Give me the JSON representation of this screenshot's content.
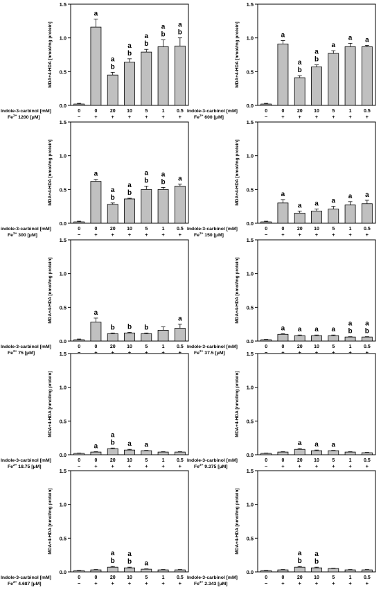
{
  "chart_data": [
    {
      "type": "bar",
      "ylabel": "MDA+4-HDA [nmol/mg protein]",
      "ylim": [
        0,
        1.5
      ],
      "yticks": [
        "0.0",
        "0.5",
        "1.0",
        "1.5"
      ],
      "row1_label": "Indole-3-carbinol [mM]",
      "row2_label": "Fe",
      "row2_sup": "2+",
      "row2_value": "1200 [μM]",
      "categories": [
        "0",
        "0",
        "20",
        "10",
        "5",
        "1",
        "0.5"
      ],
      "fe_signs": [
        "−",
        "+",
        "+",
        "+",
        "+",
        "+",
        "+"
      ],
      "values": [
        0.02,
        1.16,
        0.45,
        0.64,
        0.79,
        0.87,
        0.88
      ],
      "errors": [
        0.01,
        0.12,
        0.04,
        0.05,
        0.04,
        0.1,
        0.12
      ],
      "letters": [
        [],
        [
          "a"
        ],
        [
          "a",
          "b"
        ],
        [
          "a",
          "b"
        ],
        [
          "a",
          "b"
        ],
        [
          "a",
          "b"
        ],
        [
          "a",
          "b"
        ]
      ]
    },
    {
      "type": "bar",
      "ylabel": "MDA+4-HDA [nmol/mg protein]",
      "ylim": [
        0,
        1.5
      ],
      "yticks": [
        "0.0",
        "0.5",
        "1.0",
        "1.5"
      ],
      "row1_label": "Indole-3-carbinol [mM]",
      "row2_label": "Fe",
      "row2_sup": "2+",
      "row2_value": "600 [μM]",
      "categories": [
        "0",
        "0",
        "20",
        "10",
        "5",
        "1",
        "0.5"
      ],
      "fe_signs": [
        "−",
        "+",
        "+",
        "+",
        "+",
        "+",
        "+"
      ],
      "values": [
        0.02,
        0.91,
        0.41,
        0.57,
        0.77,
        0.87,
        0.87
      ],
      "errors": [
        0.01,
        0.05,
        0.03,
        0.03,
        0.04,
        0.05,
        0.02
      ],
      "letters": [
        [],
        [
          "a"
        ],
        [
          "a",
          "b"
        ],
        [
          "a",
          "b"
        ],
        [
          "a"
        ],
        [
          "a"
        ],
        [
          "a"
        ]
      ]
    },
    {
      "type": "bar",
      "ylabel": "MDA+4-HDA [nmol/mg protein]",
      "ylim": [
        0,
        1.5
      ],
      "yticks": [
        "0.0",
        "0.5",
        "1.0",
        "1.5"
      ],
      "row1_label": "indole-3-carbinol [mM]",
      "row2_label": "Fe",
      "row2_sup": "2+",
      "row2_value": "300 [μM]",
      "categories": [
        "0",
        "0",
        "20",
        "10",
        "5",
        "1",
        "0.5"
      ],
      "fe_signs": [
        "−",
        "+",
        "+",
        "+",
        "+",
        "+",
        "+"
      ],
      "values": [
        0.02,
        0.62,
        0.28,
        0.36,
        0.5,
        0.5,
        0.55
      ],
      "errors": [
        0.01,
        0.03,
        0.02,
        0.01,
        0.05,
        0.03,
        0.03
      ],
      "letters": [
        [],
        [
          "a"
        ],
        [
          "a",
          "b"
        ],
        [
          "a",
          "b"
        ],
        [
          "a",
          "b"
        ],
        [
          "a",
          "b"
        ],
        [
          "a"
        ]
      ]
    },
    {
      "type": "bar",
      "ylabel": "MDA+4-HDA [nmol/mg protein]",
      "ylim": [
        0,
        1.5
      ],
      "yticks": [
        "0.0",
        "0.5",
        "1.0",
        "1.5"
      ],
      "row1_label": "Indole-3-carbinol [mM]",
      "row2_label": "Fe",
      "row2_sup": "2+",
      "row2_value": "150 [μM]",
      "categories": [
        "0",
        "0",
        "20",
        "10",
        "5",
        "1",
        "0.5"
      ],
      "fe_signs": [
        "−",
        "+",
        "+",
        "+",
        "+",
        "+",
        "+"
      ],
      "values": [
        0.02,
        0.3,
        0.15,
        0.18,
        0.21,
        0.27,
        0.29
      ],
      "errors": [
        0.01,
        0.05,
        0.03,
        0.03,
        0.04,
        0.05,
        0.05
      ],
      "letters": [
        [],
        [
          "a"
        ],
        [
          "a"
        ],
        [
          "a"
        ],
        [
          "a"
        ],
        [
          "a"
        ],
        [
          "a"
        ]
      ]
    },
    {
      "type": "bar",
      "ylabel": "MDA+4-HDA [nmol/mg protein]",
      "ylim": [
        0,
        1.5
      ],
      "yticks": [
        "0.0",
        "0.5",
        "1.0",
        "1.5"
      ],
      "row1_label": "Indole-3-carbinol [mM]",
      "row2_label": "Fe",
      "row2_sup": "2+",
      "row2_value": "75 [μM]",
      "categories": [
        "0",
        "0",
        "20",
        "10",
        "5",
        "1",
        "0.5"
      ],
      "fe_signs": [
        "−",
        "+",
        "+",
        "+",
        "+",
        "+",
        "+"
      ],
      "values": [
        0.02,
        0.28,
        0.11,
        0.12,
        0.11,
        0.16,
        0.19
      ],
      "errors": [
        0.01,
        0.06,
        0.01,
        0.01,
        0.01,
        0.05,
        0.06
      ],
      "letters": [
        [],
        [
          "a"
        ],
        [
          "b"
        ],
        [
          "b"
        ],
        [
          "b"
        ],
        [],
        [
          "a"
        ]
      ]
    },
    {
      "type": "bar",
      "ylabel": "MDA+4-HDA [nmol/mg protein]",
      "ylim": [
        0,
        1.5
      ],
      "yticks": [
        "0.0",
        "0.5",
        "1.0",
        "1.5"
      ],
      "row1_label": "Indole-3-carbinol [mM]",
      "row2_label": "Fe",
      "row2_sup": "2+",
      "row2_value": "37.5 [μM]",
      "categories": [
        "0",
        "0",
        "20",
        "10",
        "5",
        "1",
        "0.5"
      ],
      "fe_signs": [
        "−",
        "+",
        "+",
        "+",
        "+",
        "+",
        "+"
      ],
      "values": [
        0.02,
        0.1,
        0.08,
        0.08,
        0.08,
        0.06,
        0.06
      ],
      "errors": [
        0.005,
        0.01,
        0.01,
        0.01,
        0.01,
        0.005,
        0.005
      ],
      "letters": [
        [],
        [
          "a"
        ],
        [
          "a"
        ],
        [
          "a"
        ],
        [
          "a"
        ],
        [
          "a",
          "b"
        ],
        [
          "a",
          "b"
        ]
      ]
    },
    {
      "type": "bar",
      "ylabel": "MDA+4-HDA [nmol/mg protein]",
      "ylim": [
        0,
        1.5
      ],
      "yticks": [
        "0.0",
        "0.5",
        "1.0",
        "1.5"
      ],
      "row1_label": "Indole-3-carbinol [mM]",
      "row2_label": "Fe",
      "row2_sup": "2+",
      "row2_value": "18.75 [μM]",
      "categories": [
        "0",
        "0",
        "20",
        "10",
        "5",
        "1",
        "0.5"
      ],
      "fe_signs": [
        "−",
        "+",
        "+",
        "+",
        "+",
        "+",
        "+"
      ],
      "values": [
        0.02,
        0.04,
        0.09,
        0.07,
        0.06,
        0.04,
        0.04
      ],
      "errors": [
        0.005,
        0.005,
        0.01,
        0.01,
        0.005,
        0.005,
        0.005
      ],
      "letters": [
        [],
        [
          "a"
        ],
        [
          "a",
          "b"
        ],
        [
          "a"
        ],
        [
          "a"
        ],
        [],
        []
      ]
    },
    {
      "type": "bar",
      "ylabel": "MDA+4-HDA [nmol/mg protein]",
      "ylim": [
        0,
        1.5
      ],
      "yticks": [
        "0.0",
        "0.5",
        "1.0",
        "1.5"
      ],
      "row1_label": "Indole-3-carbinol [mM]",
      "row2_label": "Fe",
      "row2_sup": "2+",
      "row2_value": "9.375 [μM]",
      "categories": [
        "0",
        "0",
        "20",
        "10",
        "5",
        "1",
        "0.5"
      ],
      "fe_signs": [
        "−",
        "+",
        "+",
        "+",
        "+",
        "+",
        "+"
      ],
      "values": [
        0.02,
        0.04,
        0.08,
        0.06,
        0.06,
        0.04,
        0.03
      ],
      "errors": [
        0.005,
        0.005,
        0.01,
        0.01,
        0.005,
        0.005,
        0.005
      ],
      "letters": [
        [],
        [],
        [
          "a"
        ],
        [
          "a"
        ],
        [
          "a"
        ],
        [],
        []
      ]
    },
    {
      "type": "bar",
      "ylabel": "MDA+4-HDA [nmol/mg protein]",
      "ylim": [
        0,
        1.5
      ],
      "yticks": [
        "0.0",
        "0.5",
        "1.0",
        "1.5"
      ],
      "row1_label": "Indole-3-carbinol [mM]",
      "row2_label": "Fe",
      "row2_sup": "2+",
      "row2_value": "4.687 [μM]",
      "categories": [
        "0",
        "0",
        "20",
        "10",
        "5",
        "1",
        "0.5"
      ],
      "fe_signs": [
        "−",
        "+",
        "+",
        "+",
        "+",
        "+",
        "+"
      ],
      "values": [
        0.02,
        0.03,
        0.07,
        0.06,
        0.04,
        0.03,
        0.03
      ],
      "errors": [
        0.005,
        0.005,
        0.01,
        0.01,
        0.005,
        0.005,
        0.005
      ],
      "letters": [
        [],
        [],
        [
          "a",
          "b"
        ],
        [
          "a",
          "b"
        ],
        [
          "a"
        ],
        [],
        []
      ]
    },
    {
      "type": "bar",
      "ylabel": "MDA+4-HDA [nmol/mg protein]",
      "ylim": [
        0,
        1.5
      ],
      "yticks": [
        "0.0",
        "0.5",
        "1.0",
        "1.5"
      ],
      "row1_label": "Indole-3-carbinol [mM]",
      "row2_label": "Fe",
      "row2_sup": "2+",
      "row2_value": "2.343 [μM]",
      "categories": [
        "0",
        "0",
        "20",
        "10",
        "5",
        "1",
        "0.5"
      ],
      "fe_signs": [
        "−",
        "+",
        "+",
        "+",
        "+",
        "+",
        "+"
      ],
      "values": [
        0.02,
        0.03,
        0.07,
        0.06,
        0.05,
        0.03,
        0.03
      ],
      "errors": [
        0.005,
        0.005,
        0.01,
        0.01,
        0.005,
        0.005,
        0.005
      ],
      "letters": [
        [],
        [],
        [
          "a",
          "b"
        ],
        [
          "a",
          "b"
        ],
        [],
        [],
        []
      ]
    }
  ],
  "colors": {
    "bar_fill": "#c0c0c0",
    "stroke": "#000000",
    "background": "#ffffff"
  }
}
